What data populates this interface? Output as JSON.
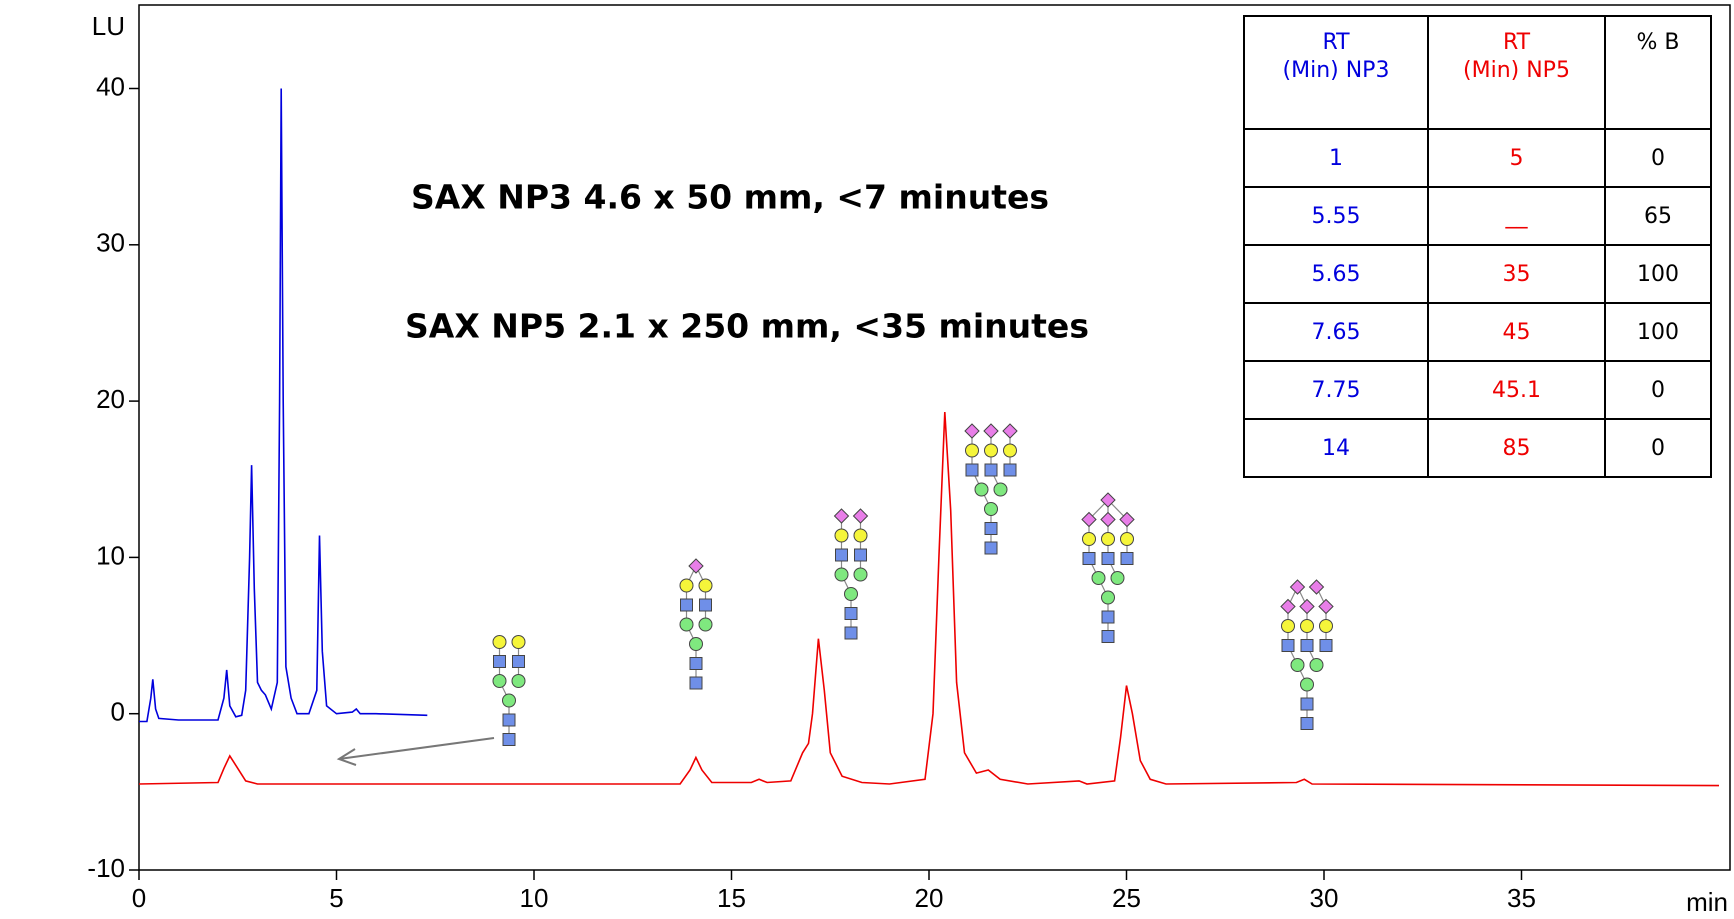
{
  "chart_data": {
    "type": "line",
    "ylabel": "LU",
    "xlabel": "min",
    "xlim": [
      0,
      40
    ],
    "ylim": [
      -10,
      40
    ],
    "xticks": [
      0,
      5,
      10,
      15,
      20,
      25,
      30,
      35
    ],
    "yticks": [
      -10,
      0,
      10,
      20,
      30,
      40
    ],
    "annotations": [
      {
        "text": "SAX NP3 4.6 x 50 mm, <7 minutes",
        "color": "#0000cc"
      },
      {
        "text": "SAX NP5 2.1 x 250 mm, <35 minutes",
        "color": "#ee0000"
      }
    ],
    "series": [
      {
        "color": "#0000dd",
        "x": [
          0,
          0.2,
          0.3,
          0.35,
          0.42,
          0.5,
          1.0,
          2.0,
          2.15,
          2.22,
          2.3,
          2.45,
          2.6,
          2.7,
          2.8,
          2.85,
          2.92,
          3.0,
          3.1,
          3.2,
          3.35,
          3.5,
          3.56,
          3.6,
          3.65,
          3.72,
          3.85,
          4.0,
          4.3,
          4.5,
          4.57,
          4.64,
          4.75,
          5.0,
          5.4,
          5.5,
          5.6,
          6.0,
          7.3
        ],
        "values": [
          -0.5,
          -0.5,
          1.0,
          2.2,
          0.3,
          -0.3,
          -0.4,
          -0.4,
          1.0,
          2.8,
          0.5,
          -0.2,
          -0.1,
          1.5,
          10.0,
          15.9,
          8.0,
          2.0,
          1.5,
          1.2,
          0.3,
          2.0,
          20.0,
          40.0,
          20.0,
          3.0,
          1.0,
          0.0,
          0.0,
          1.5,
          11.4,
          4.0,
          0.5,
          0.0,
          0.1,
          0.3,
          0.0,
          0.0,
          -0.1
        ]
      },
      {
        "color": "#ee0000",
        "x": [
          0,
          2.0,
          2.15,
          2.3,
          2.45,
          2.7,
          3.0,
          13.7,
          13.95,
          14.1,
          14.25,
          14.5,
          15.5,
          15.7,
          15.9,
          16.5,
          16.8,
          16.95,
          17.05,
          17.2,
          17.35,
          17.5,
          17.8,
          18.3,
          19.0,
          19.9,
          20.1,
          20.25,
          20.4,
          20.55,
          20.7,
          20.9,
          21.2,
          21.5,
          21.8,
          22.5,
          23.8,
          24.0,
          24.7,
          24.85,
          25.0,
          25.15,
          25.35,
          25.6,
          26.0,
          29.3,
          29.5,
          29.7,
          40
        ],
        "values": [
          -4.5,
          -4.4,
          -3.5,
          -2.7,
          -3.3,
          -4.3,
          -4.5,
          -4.5,
          -3.6,
          -2.8,
          -3.6,
          -4.4,
          -4.4,
          -4.2,
          -4.4,
          -4.3,
          -2.5,
          -1.9,
          0.0,
          4.8,
          1.5,
          -2.5,
          -4.0,
          -4.4,
          -4.5,
          -4.2,
          0.0,
          10.0,
          19.3,
          13.0,
          2.0,
          -2.5,
          -3.8,
          -3.6,
          -4.2,
          -4.5,
          -4.3,
          -4.5,
          -4.3,
          -1.5,
          1.8,
          0.0,
          -3.0,
          -4.2,
          -4.5,
          -4.4,
          -4.2,
          -4.5,
          -4.6
        ]
      }
    ]
  },
  "table": {
    "header": [
      [
        "RT",
        "(Min) NP3"
      ],
      [
        "RT",
        "(Min) NP5"
      ],
      [
        "% B"
      ]
    ],
    "rows": [
      [
        "1",
        "5",
        "0"
      ],
      [
        "5.55",
        "__",
        "65"
      ],
      [
        "5.65",
        "35",
        "100"
      ],
      [
        "7.65",
        "45",
        "100"
      ],
      [
        "7.75",
        "45.1",
        "0"
      ],
      [
        "14",
        "85",
        "0"
      ]
    ]
  }
}
